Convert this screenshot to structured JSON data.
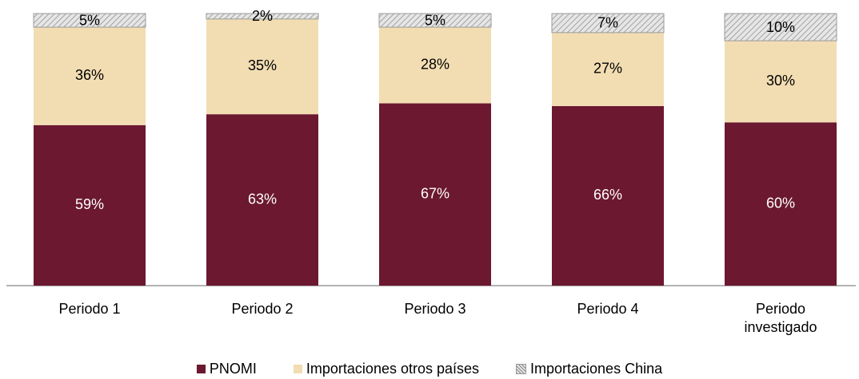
{
  "chart_data": {
    "type": "stacked_bar",
    "categories": [
      "Periodo 1",
      "Periodo 2",
      "Periodo 3",
      "Periodo 4",
      "Periodo investigado"
    ],
    "series": [
      {
        "name": "PNOMI",
        "color": "#6b1830",
        "label_color": "#ffffff",
        "values": [
          59,
          63,
          67,
          66,
          60
        ],
        "value_labels": [
          "59%",
          "63%",
          "67%",
          "66%",
          "60%"
        ]
      },
      {
        "name": "Importaciones otros países",
        "color": "#f2ddb2",
        "label_color": "#000000",
        "values": [
          36,
          35,
          28,
          27,
          30
        ],
        "value_labels": [
          "36%",
          "35%",
          "28%",
          "27%",
          "30%"
        ]
      },
      {
        "name": "Importaciones China",
        "color": "#e6e6e6",
        "pattern": "hatch",
        "label_color": "#000000",
        "values": [
          5,
          2,
          5,
          7,
          10
        ],
        "value_labels": [
          "5%",
          "2%",
          "5%",
          "7%",
          "10%"
        ]
      }
    ],
    "legend": "bottom"
  }
}
